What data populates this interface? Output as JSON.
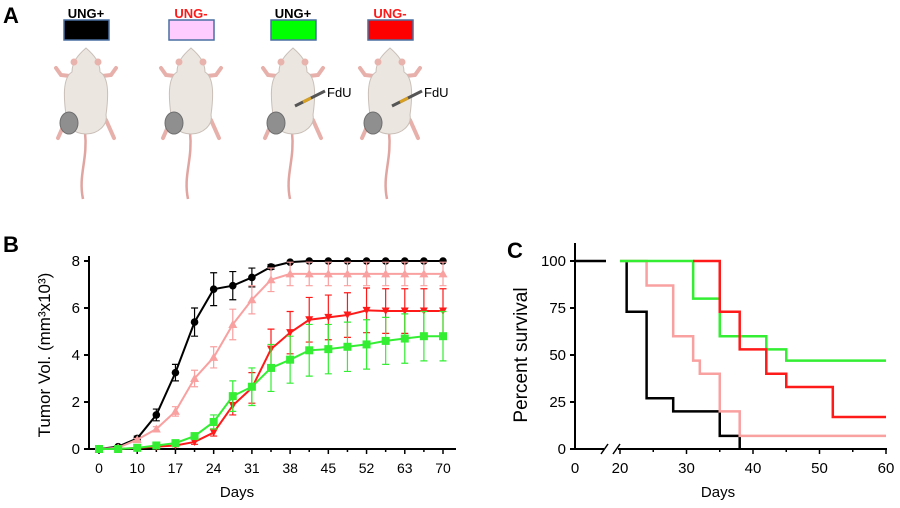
{
  "panel_a": {
    "label": "A",
    "groups": [
      {
        "label": "UNG+",
        "label_color": "#000000",
        "box_color": "#000000",
        "injection": ""
      },
      {
        "label": "UNG-",
        "label_color": "#ff1a1a",
        "box_color": "#ffccff",
        "injection": ""
      },
      {
        "label": "UNG+",
        "label_color": "#000000",
        "box_color": "#00ff00",
        "injection": "FdU"
      },
      {
        "label": "UNG-",
        "label_color": "#ff1a1a",
        "box_color": "#ff0000",
        "injection": "FdU"
      }
    ]
  },
  "panel_b": {
    "label": "B"
  },
  "panel_c": {
    "label": "C"
  },
  "chart_data": [
    {
      "type": "line",
      "xlabel": "Days",
      "ylabel": "Tumor Vol. (mm³x10³)",
      "x": [
        0,
        5,
        10,
        14,
        17,
        21,
        24,
        28,
        31,
        35,
        38,
        42,
        45,
        49,
        52,
        59,
        63,
        67,
        70
      ],
      "xtick_labels": [
        "0",
        "10",
        "17",
        "24",
        "31",
        "38",
        "45",
        "52",
        "63",
        "70"
      ],
      "yticks": [
        0,
        2,
        4,
        6,
        8
      ],
      "ylim": [
        0,
        8
      ],
      "grid": false,
      "series": [
        {
          "color": "#000000",
          "marker": "circle",
          "values": [
            0,
            0.1,
            0.45,
            1.45,
            3.25,
            5.4,
            6.8,
            6.95,
            7.3,
            7.75,
            7.95,
            8,
            8,
            8,
            8,
            8,
            8,
            8,
            8
          ],
          "errors": [
            0,
            0,
            0.1,
            0.25,
            0.35,
            0.6,
            0.7,
            0.6,
            0.4,
            0.1,
            0,
            0,
            0,
            0,
            0,
            0,
            0,
            0,
            0
          ]
        },
        {
          "color": "#f9a0a0",
          "marker": "triangle-up",
          "values": [
            0,
            0.05,
            0.4,
            0.85,
            1.6,
            3.0,
            3.9,
            5.3,
            6.35,
            7.2,
            7.45,
            7.45,
            7.45,
            7.45,
            7.45,
            7.45,
            7.45,
            7.45,
            7.45
          ],
          "errors": [
            0,
            0,
            0.05,
            0.1,
            0.2,
            0.35,
            0.45,
            0.65,
            0.6,
            0.5,
            0.5,
            0.5,
            0.5,
            0.5,
            0.5,
            0.5,
            0.5,
            0.5,
            0.5
          ]
        },
        {
          "color": "#ff1a1a",
          "marker": "triangle-down",
          "values": [
            0,
            0,
            0.05,
            0.1,
            0.15,
            0.3,
            0.7,
            1.85,
            2.6,
            4.25,
            4.95,
            5.5,
            5.6,
            5.7,
            5.9,
            5.87,
            5.87,
            5.87,
            5.87
          ],
          "errors": [
            0,
            0,
            0,
            0,
            0.05,
            0.1,
            0.15,
            0.4,
            0.65,
            0.85,
            0.9,
            0.95,
            0.95,
            0.95,
            0.95,
            0.95,
            0.95,
            0.95,
            0.95
          ]
        },
        {
          "color": "#33ee33",
          "marker": "square",
          "values": [
            0,
            0,
            0.05,
            0.15,
            0.25,
            0.55,
            1.15,
            2.25,
            2.65,
            3.45,
            3.8,
            4.2,
            4.25,
            4.35,
            4.45,
            4.6,
            4.7,
            4.8,
            4.8
          ],
          "errors": [
            0,
            0,
            0,
            0.05,
            0.05,
            0.1,
            0.3,
            0.65,
            0.8,
            1.0,
            1.0,
            1.1,
            1.05,
            1.05,
            1.05,
            1.0,
            1.05,
            1.05,
            1.05
          ]
        }
      ]
    },
    {
      "type": "line",
      "subtype": "kaplan-meier step",
      "xlabel": "Days",
      "ylabel": "Percent survival",
      "xticks": [
        0,
        20,
        30,
        40,
        50,
        60
      ],
      "xlim": [
        0,
        60
      ],
      "x_axis_break": [
        17,
        20
      ],
      "yticks": [
        0,
        25,
        50,
        75,
        100
      ],
      "ylim": [
        0,
        100
      ],
      "grid": false,
      "series": [
        {
          "color": "#000000",
          "steps": [
            [
              0,
              100
            ],
            [
              21,
              100
            ],
            [
              21,
              73
            ],
            [
              24,
              73
            ],
            [
              24,
              27
            ],
            [
              28,
              27
            ],
            [
              28,
              20
            ],
            [
              35,
              20
            ],
            [
              35,
              7
            ],
            [
              38,
              7
            ],
            [
              38,
              0
            ]
          ]
        },
        {
          "color": "#f9a0a0",
          "steps": [
            [
              20,
              100
            ],
            [
              24,
              100
            ],
            [
              24,
              87
            ],
            [
              28,
              87
            ],
            [
              28,
              60
            ],
            [
              31,
              60
            ],
            [
              31,
              47
            ],
            [
              32,
              47
            ],
            [
              32,
              40
            ],
            [
              35,
              40
            ],
            [
              35,
              20
            ],
            [
              38,
              20
            ],
            [
              38,
              7
            ],
            [
              60,
              7
            ]
          ]
        },
        {
          "color": "#33ee33",
          "steps": [
            [
              20,
              100
            ],
            [
              31,
              100
            ],
            [
              31,
              80
            ],
            [
              35,
              80
            ],
            [
              35,
              60
            ],
            [
              42,
              60
            ],
            [
              42,
              53
            ],
            [
              45,
              53
            ],
            [
              45,
              47
            ],
            [
              60,
              47
            ]
          ]
        },
        {
          "color": "#ff1a1a",
          "steps": [
            [
              31,
              100
            ],
            [
              35,
              100
            ],
            [
              35,
              73
            ],
            [
              38,
              73
            ],
            [
              38,
              53
            ],
            [
              42,
              53
            ],
            [
              42,
              40
            ],
            [
              45,
              40
            ],
            [
              45,
              33
            ],
            [
              52,
              33
            ],
            [
              52,
              17
            ],
            [
              60,
              17
            ]
          ]
        }
      ]
    }
  ]
}
